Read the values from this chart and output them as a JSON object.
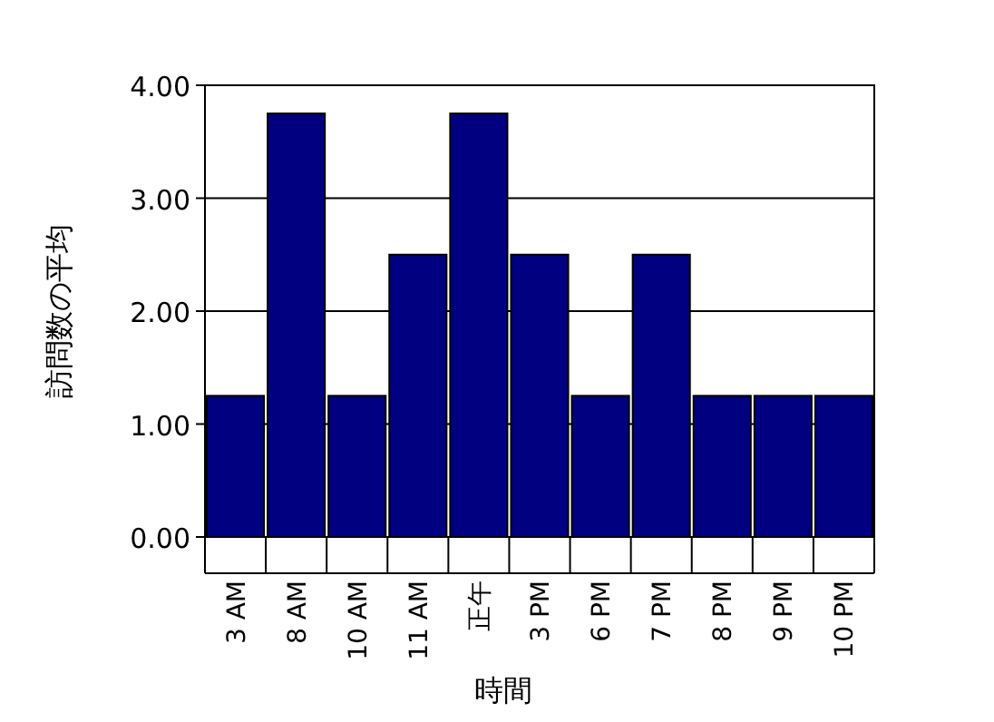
{
  "chart_data": {
    "type": "bar",
    "xlabel": "時間",
    "ylabel": "訪問数の平均",
    "categories": [
      "3 AM",
      "8 AM",
      "10 AM",
      "11 AM",
      "正午",
      "3 PM",
      "6 PM",
      "7 PM",
      "8 PM",
      "9 PM",
      "10 PM"
    ],
    "values": [
      1.25,
      3.75,
      1.25,
      2.5,
      3.75,
      2.5,
      1.25,
      2.5,
      1.25,
      1.25,
      1.25
    ],
    "color": "#000080",
    "ylim": [
      0,
      4
    ],
    "yticks": [
      {
        "value": 0,
        "label": "0.00"
      },
      {
        "value": 1,
        "label": "1.00"
      },
      {
        "value": 2,
        "label": "2.00"
      },
      {
        "value": 3,
        "label": "3.00"
      },
      {
        "value": 4,
        "label": "4.00"
      }
    ],
    "grid": "y"
  }
}
